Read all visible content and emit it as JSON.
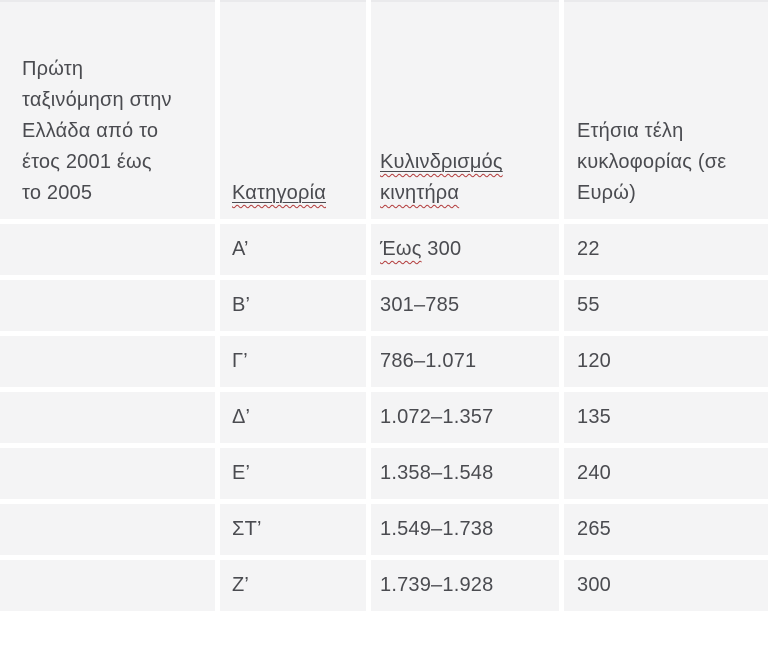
{
  "colors": {
    "cell_background": "#f4f4f5",
    "text": "#4a4b50",
    "spellcheck_underline": "#b23b3b",
    "table_top_border": "#eaeaec"
  },
  "table": {
    "header": {
      "first_registration": "Πρώτη ταξινόμηση στην Ελλάδα από το έτος 2001 έως το 2005",
      "category": "Κατηγορία",
      "displacement_line1": "Κυλινδρισμός",
      "displacement_line2": "κινητήρα",
      "annual_fees": "Ετήσια τέλη κυκλοφορίας (σε Ευρώ)"
    },
    "rows": [
      {
        "category": "Α’",
        "displacement_marked": "Έως",
        "displacement": " 300",
        "fee": "22"
      },
      {
        "category": "Β’",
        "displacement": "301–785",
        "fee": "55"
      },
      {
        "category": "Γ’",
        "displacement": "786–1.071",
        "fee": "120"
      },
      {
        "category": "Δ’",
        "displacement": "1.072–1.357",
        "fee": "135"
      },
      {
        "category": "Ε’",
        "displacement": "1.358–1.548",
        "fee": "240"
      },
      {
        "category": "ΣΤ’",
        "displacement": "1.549–1.738",
        "fee": "265"
      },
      {
        "category": "Ζ’",
        "displacement": "1.739–1.928",
        "fee": "300"
      }
    ]
  }
}
